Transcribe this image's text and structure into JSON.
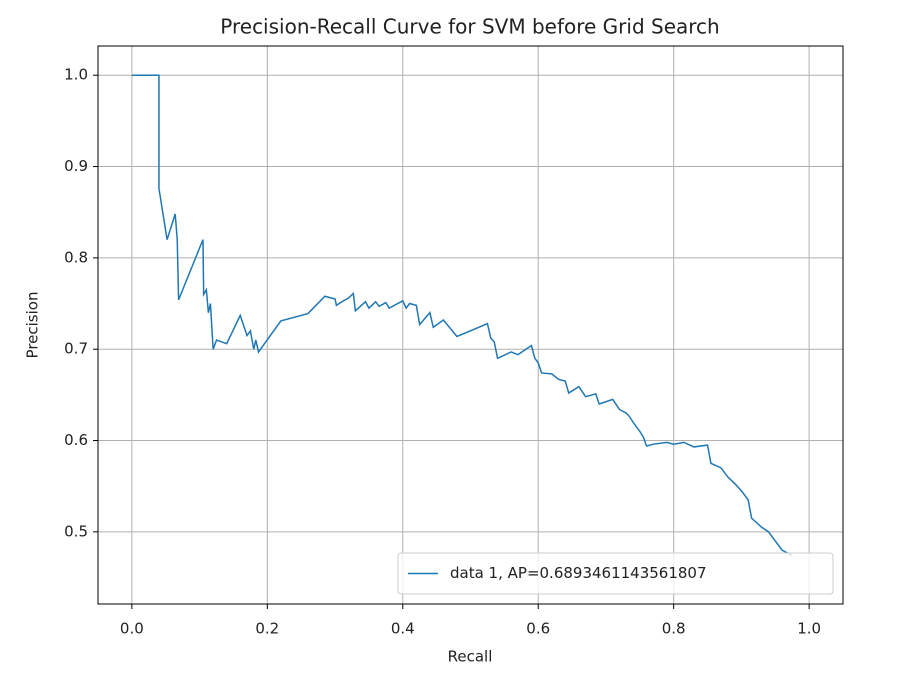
{
  "chart_data": {
    "type": "line",
    "title": "Precision-Recall Curve for SVM before Grid Search",
    "xlabel": "Recall",
    "ylabel": "Precision",
    "xlim": [
      -0.05,
      1.05
    ],
    "ylim": [
      0.421,
      1.032
    ],
    "xticks": [
      {
        "value": 0,
        "label": "0.0"
      },
      0.2,
      0.4,
      0.6,
      0.8,
      {
        "value": 1,
        "label": "1.0"
      }
    ],
    "yticks": [
      0.5,
      0.6,
      0.7,
      0.8,
      0.9,
      {
        "value": 1,
        "label": "1.0"
      }
    ],
    "grid": true,
    "legend": "lower right",
    "series": [
      {
        "name": "data 1, AP=0.6893461143561807",
        "color": "#1f77b4",
        "x": [
          0,
          0.04,
          0.04,
          0.052,
          0.064,
          0.067,
          0.069,
          0.105,
          0.106,
          0.11,
          0.113,
          0.116,
          0.12,
          0.125,
          0.14,
          0.16,
          0.17,
          0.175,
          0.18,
          0.183,
          0.187,
          0.22,
          0.26,
          0.285,
          0.3,
          0.302,
          0.31,
          0.32,
          0.327,
          0.33,
          0.345,
          0.35,
          0.36,
          0.365,
          0.375,
          0.38,
          0.4,
          0.405,
          0.41,
          0.42,
          0.425,
          0.44,
          0.445,
          0.46,
          0.48,
          0.525,
          0.53,
          0.535,
          0.54,
          0.56,
          0.57,
          0.59,
          0.595,
          0.6,
          0.605,
          0.62,
          0.63,
          0.64,
          0.645,
          0.66,
          0.67,
          0.685,
          0.69,
          0.71,
          0.72,
          0.73,
          0.735,
          0.74,
          0.75,
          0.755,
          0.76,
          0.77,
          0.79,
          0.8,
          0.815,
          0.83,
          0.85,
          0.855,
          0.87,
          0.88,
          0.89,
          0.9,
          0.91,
          0.915,
          0.93,
          0.94,
          0.95,
          0.96,
          0.97,
          0.975
        ],
        "values": [
          1.0,
          1.0,
          0.876,
          0.82,
          0.848,
          0.82,
          0.754,
          0.82,
          0.76,
          0.765,
          0.74,
          0.75,
          0.7,
          0.71,
          0.706,
          0.737,
          0.715,
          0.72,
          0.7,
          0.71,
          0.697,
          0.731,
          0.739,
          0.758,
          0.755,
          0.748,
          0.752,
          0.756,
          0.761,
          0.742,
          0.752,
          0.745,
          0.752,
          0.747,
          0.751,
          0.745,
          0.753,
          0.745,
          0.75,
          0.748,
          0.727,
          0.74,
          0.724,
          0.732,
          0.714,
          0.728,
          0.712,
          0.708,
          0.69,
          0.697,
          0.694,
          0.704,
          0.69,
          0.685,
          0.674,
          0.673,
          0.667,
          0.665,
          0.652,
          0.659,
          0.648,
          0.651,
          0.64,
          0.645,
          0.634,
          0.63,
          0.626,
          0.62,
          0.61,
          0.604,
          0.594,
          0.596,
          0.598,
          0.596,
          0.598,
          0.593,
          0.595,
          0.575,
          0.57,
          0.56,
          0.553,
          0.545,
          0.535,
          0.515,
          0.505,
          0.5,
          0.49,
          0.48,
          0.476,
          0.474
        ]
      }
    ]
  }
}
